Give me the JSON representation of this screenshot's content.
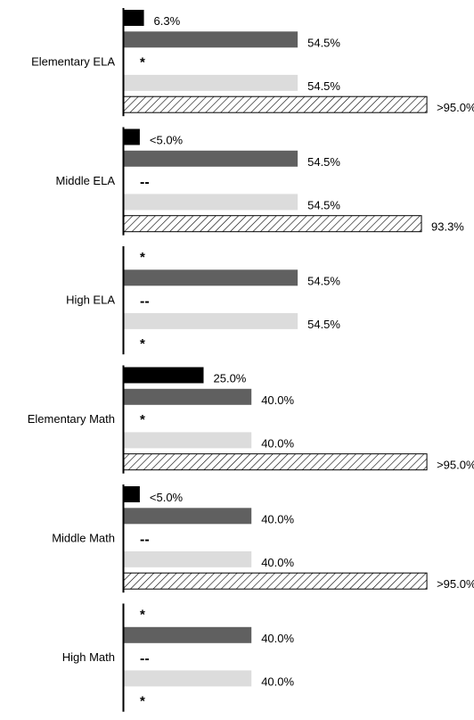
{
  "chart_data": {
    "type": "bar",
    "orientation": "horizontal",
    "xlim": [
      0,
      100
    ],
    "grid": false,
    "legend": "none",
    "categories": [
      "Elementary ELA",
      "Middle ELA",
      "High ELA",
      "Elementary Math",
      "Middle Math",
      "High Math"
    ],
    "series_colors": [
      "#000000",
      "#606060",
      "#000000",
      "#dcdcdc",
      "hatched"
    ],
    "groups": [
      {
        "category": "Elementary ELA",
        "rows": [
          {
            "series_index": 0,
            "kind": "bar",
            "value": 6.3,
            "label": "6.3%"
          },
          {
            "series_index": 1,
            "kind": "bar",
            "value": 54.5,
            "label": "54.5%"
          },
          {
            "series_index": 2,
            "kind": "marker",
            "value": null,
            "label": "*"
          },
          {
            "series_index": 3,
            "kind": "bar",
            "value": 54.5,
            "label": "54.5%"
          },
          {
            "series_index": 4,
            "kind": "bar",
            "value": 95.0,
            "label": ">95.0%"
          }
        ]
      },
      {
        "category": "Middle ELA",
        "rows": [
          {
            "series_index": 0,
            "kind": "bar",
            "value": 5.0,
            "label": "<5.0%"
          },
          {
            "series_index": 1,
            "kind": "bar",
            "value": 54.5,
            "label": "54.5%"
          },
          {
            "series_index": 2,
            "kind": "marker",
            "value": null,
            "label": "--"
          },
          {
            "series_index": 3,
            "kind": "bar",
            "value": 54.5,
            "label": "54.5%"
          },
          {
            "series_index": 4,
            "kind": "bar",
            "value": 93.3,
            "label": "93.3%"
          }
        ]
      },
      {
        "category": "High ELA",
        "rows": [
          {
            "series_index": 0,
            "kind": "marker",
            "value": null,
            "label": "*"
          },
          {
            "series_index": 1,
            "kind": "bar",
            "value": 54.5,
            "label": "54.5%"
          },
          {
            "series_index": 2,
            "kind": "marker",
            "value": null,
            "label": "--"
          },
          {
            "series_index": 3,
            "kind": "bar",
            "value": 54.5,
            "label": "54.5%"
          },
          {
            "series_index": 4,
            "kind": "marker",
            "value": null,
            "label": "*"
          }
        ]
      },
      {
        "category": "Elementary Math",
        "rows": [
          {
            "series_index": 0,
            "kind": "bar",
            "value": 25.0,
            "label": "25.0%"
          },
          {
            "series_index": 1,
            "kind": "bar",
            "value": 40.0,
            "label": "40.0%"
          },
          {
            "series_index": 2,
            "kind": "marker",
            "value": null,
            "label": "*"
          },
          {
            "series_index": 3,
            "kind": "bar",
            "value": 40.0,
            "label": "40.0%"
          },
          {
            "series_index": 4,
            "kind": "bar",
            "value": 95.0,
            "label": ">95.0%"
          }
        ]
      },
      {
        "category": "Middle Math",
        "rows": [
          {
            "series_index": 0,
            "kind": "bar",
            "value": 5.0,
            "label": "<5.0%"
          },
          {
            "series_index": 1,
            "kind": "bar",
            "value": 40.0,
            "label": "40.0%"
          },
          {
            "series_index": 2,
            "kind": "marker",
            "value": null,
            "label": "--"
          },
          {
            "series_index": 3,
            "kind": "bar",
            "value": 40.0,
            "label": "40.0%"
          },
          {
            "series_index": 4,
            "kind": "bar",
            "value": 95.0,
            "label": ">95.0%"
          }
        ]
      },
      {
        "category": "High Math",
        "rows": [
          {
            "series_index": 0,
            "kind": "marker",
            "value": null,
            "label": "*"
          },
          {
            "series_index": 1,
            "kind": "bar",
            "value": 40.0,
            "label": "40.0%"
          },
          {
            "series_index": 2,
            "kind": "marker",
            "value": null,
            "label": "--"
          },
          {
            "series_index": 3,
            "kind": "bar",
            "value": 40.0,
            "label": "40.0%"
          },
          {
            "series_index": 4,
            "kind": "marker",
            "value": null,
            "label": "*"
          }
        ]
      }
    ]
  }
}
